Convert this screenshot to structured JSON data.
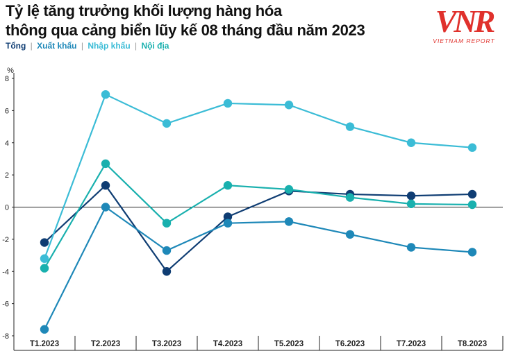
{
  "header": {
    "title_line1": "Tỷ lệ tăng trưởng khối lượng hàng hóa",
    "title_line2": "thông qua cảng biển lũy kế 08 tháng đầu năm 2023",
    "separator": "|"
  },
  "logo": {
    "mark": "VNR",
    "text": "VIETNAM REPORT",
    "color": "#e0312c"
  },
  "chart_data": {
    "type": "line",
    "categories": [
      "T1.2023",
      "T2.2023",
      "T3.2023",
      "T4.2023",
      "T5.2023",
      "T6.2023",
      "T7.2023",
      "T8.2023"
    ],
    "ylabel": "%",
    "ylim": [
      -8,
      8
    ],
    "yticks": [
      -8,
      -6,
      -4,
      -2,
      0,
      2,
      4,
      6,
      8
    ],
    "legend_position": "top-left",
    "series": [
      {
        "name": "Tổng",
        "color": "#0f3d73",
        "values": [
          -2.2,
          1.35,
          -4.0,
          -0.6,
          1.0,
          0.8,
          0.7,
          0.8
        ]
      },
      {
        "name": "Xuất khẩu",
        "color": "#1e88b8",
        "values": [
          -7.6,
          0.0,
          -2.7,
          -1.0,
          -0.9,
          -1.7,
          -2.5,
          -2.8
        ]
      },
      {
        "name": "Nhập khẩu",
        "color": "#3bbcd6",
        "values": [
          -3.2,
          7.0,
          5.2,
          6.45,
          6.35,
          5.0,
          4.0,
          3.7
        ]
      },
      {
        "name": "Nội địa",
        "color": "#19b0ae",
        "values": [
          -3.8,
          2.7,
          -1.0,
          1.35,
          1.1,
          0.6,
          0.2,
          0.15
        ]
      }
    ]
  }
}
